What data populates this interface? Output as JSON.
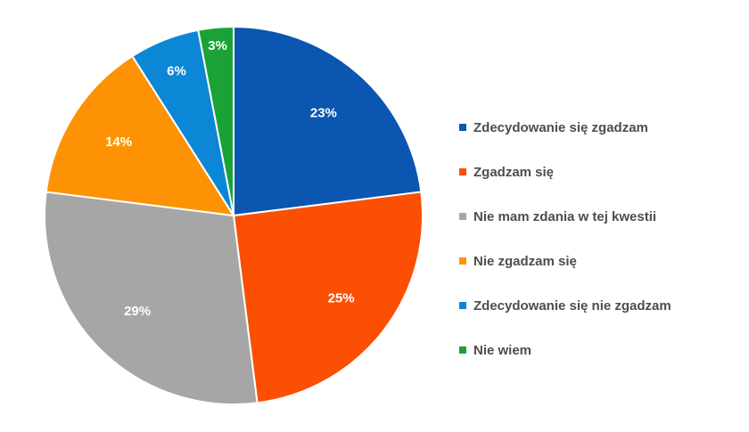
{
  "chart_data": {
    "type": "pie",
    "start": "top",
    "direction": "clockwise",
    "legend_position": "right",
    "slices": [
      {
        "name": "Zdecydowanie się zgadzam",
        "value": 23,
        "label": "23%",
        "color": "#0a56b0"
      },
      {
        "name": "Zgadzam się",
        "value": 25,
        "label": "25%",
        "color": "#fb4f04"
      },
      {
        "name": "Nie mam zdania w tej kwestii",
        "value": 29,
        "label": "29%",
        "color": "#a6a6a6"
      },
      {
        "name": "Nie zgadzam się",
        "value": 14,
        "label": "14%",
        "color": "#fd9304"
      },
      {
        "name": "Zdecydowanie się nie zgadzam",
        "value": 6,
        "label": "6%",
        "color": "#0c87d6"
      },
      {
        "name": "Nie wiem",
        "value": 3,
        "label": "3%",
        "color": "#1ba237"
      }
    ]
  }
}
